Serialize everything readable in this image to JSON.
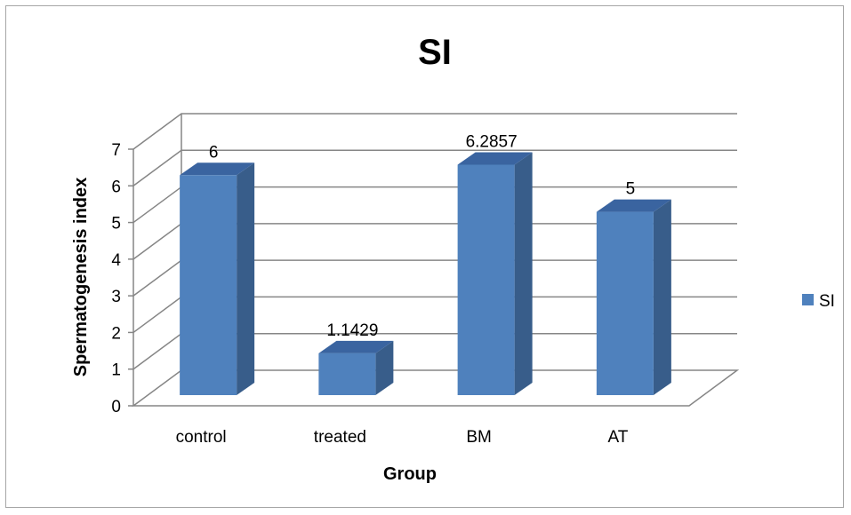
{
  "chart_data": {
    "type": "bar",
    "title": "SI",
    "xlabel": "Group",
    "ylabel": "Spermatogenesis index",
    "categories": [
      "control",
      "treated",
      "BM",
      "AT"
    ],
    "series": [
      {
        "name": "SI",
        "values": [
          6,
          1.1429,
          6.2857,
          5
        ]
      }
    ],
    "data_labels": [
      "6",
      "1.1429",
      "6.2857",
      "5"
    ],
    "ylim": [
      0,
      7
    ],
    "yticks": [
      "0",
      "1",
      "2",
      "3",
      "4",
      "5",
      "6",
      "7"
    ],
    "grid": true,
    "legend": "right",
    "colors": {
      "bar_front": "#4f81bd",
      "bar_side": "#385d8a",
      "bar_top": "#3a64a0",
      "grid": "#868686"
    }
  }
}
